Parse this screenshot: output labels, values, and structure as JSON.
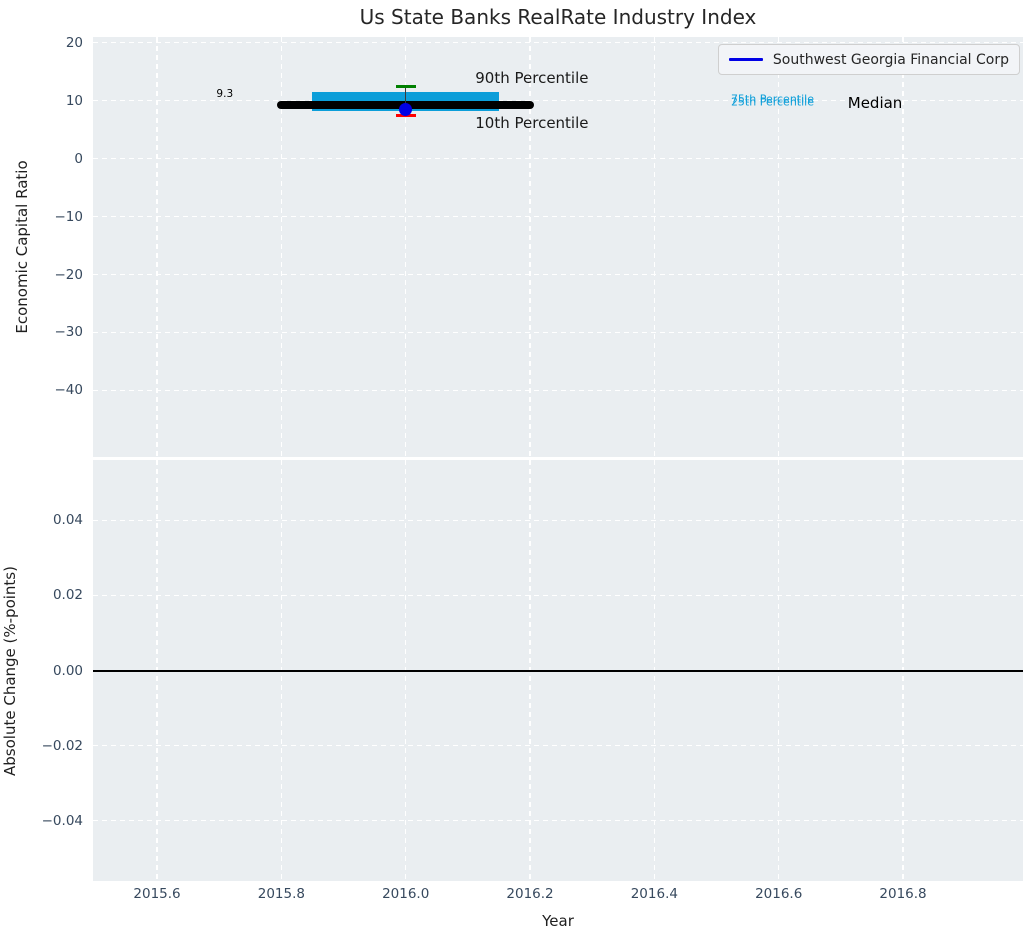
{
  "figure": {
    "title": "Us State Banks RealRate Industry Index",
    "background": "#ffffff",
    "plot_background": "#eaeef1",
    "grid_color": "#ffffff",
    "tick_label_color": "#37495e"
  },
  "legend": {
    "label": "Southwest Georgia Financial Corp",
    "line_color": "#0000e6"
  },
  "chart_data": {
    "type": "errorbar",
    "title": "Us State Banks RealRate Industry Index",
    "x_axis": {
      "label": "Year",
      "range": [
        2015.497,
        2016.993
      ],
      "ticks": [
        {
          "label": "2015.6",
          "value": 2015.6
        },
        {
          "label": "2015.8",
          "value": 2015.8
        },
        {
          "label": "2016.0",
          "value": 2016.0
        },
        {
          "label": "2016.2",
          "value": 2016.2
        },
        {
          "label": "2016.4",
          "value": 2016.4
        },
        {
          "label": "2016.6",
          "value": 2016.6
        },
        {
          "label": "2016.8",
          "value": 2016.8
        }
      ]
    },
    "top": {
      "ylabel": "Economic Capital Ratio",
      "yrange": [
        -51.5,
        21.0
      ],
      "yticks": [
        {
          "label": "20",
          "value": 20
        },
        {
          "label": "10",
          "value": 10
        },
        {
          "label": "0",
          "value": 0
        },
        {
          "label": "−10",
          "value": -10
        },
        {
          "label": "−20",
          "value": -20
        },
        {
          "label": "−30",
          "value": -30
        },
        {
          "label": "−40",
          "value": -40
        }
      ],
      "year": 2016.0,
      "company": {
        "name": "Southwest Georgia Financial Corp",
        "value": 8.4,
        "color": "#0000e6"
      },
      "median": {
        "value": 9.3,
        "label": "9.3",
        "x_span": [
          2015.8,
          2016.2
        ],
        "color": "#000000"
      },
      "iqr": {
        "p25": 8.2,
        "p75": 11.5,
        "x_span": [
          2015.85,
          2016.15
        ],
        "color": "#0c9ed9"
      },
      "p90": {
        "value": 12.5,
        "color": "#008000"
      },
      "p10": {
        "value": 7.4,
        "color": "#ff0000"
      },
      "whisker_color": "#3a3a3a",
      "annotations": [
        {
          "text": "9.3",
          "x": 2015.709,
          "y": 11.16,
          "color": "#000000",
          "size": 10.5
        },
        {
          "text": "90th Percentile",
          "x": 2016.203,
          "y": 13.9,
          "color": "#1a1a1a",
          "size": 15
        },
        {
          "text": "10th Percentile",
          "x": 2016.203,
          "y": 6.15,
          "color": "#1a1a1a",
          "size": 15
        },
        {
          "text": "75th Percentile",
          "x": 2016.59,
          "y": 10.3,
          "color": "#0c9ed9",
          "size": 11
        },
        {
          "text": "25th Percentile",
          "x": 2016.59,
          "y": 9.85,
          "color": "#0c9ed9",
          "size": 11
        },
        {
          "text": "Median",
          "x": 2016.755,
          "y": 9.6,
          "color": "#000000",
          "size": 15
        }
      ]
    },
    "bottom": {
      "ylabel": "Absolute Change (%-points)",
      "yrange": [
        -0.0561,
        0.0561
      ],
      "yticks": [
        {
          "label": "0.04",
          "value": 0.04
        },
        {
          "label": "0.02",
          "value": 0.02
        },
        {
          "label": "0.00",
          "value": 0.0
        },
        {
          "label": "−0.02",
          "value": -0.02
        },
        {
          "label": "−0.04",
          "value": -0.04
        }
      ],
      "zero_line": {
        "value": 0.0,
        "color": "#000000"
      }
    }
  }
}
